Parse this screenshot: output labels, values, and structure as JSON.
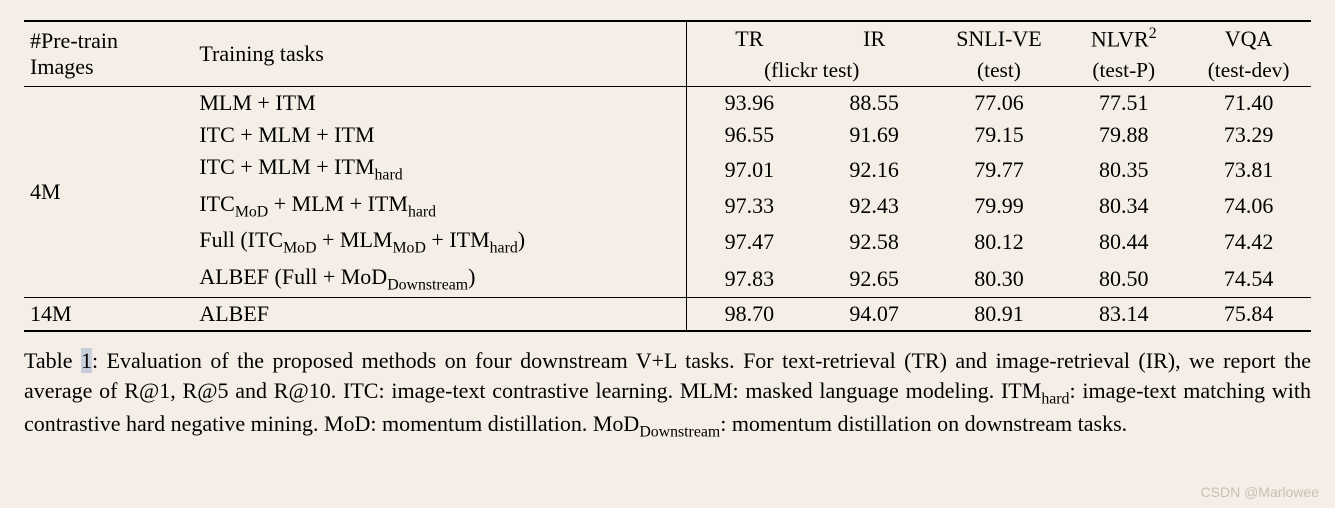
{
  "table": {
    "background_color": "#f5eee6",
    "rule_color": "#000000",
    "font_family": "Times New Roman",
    "font_size_pt": 22,
    "header": {
      "col0_line1": "#Pre-train",
      "col0_line2": "Images",
      "col1": "Training tasks",
      "tr": "TR",
      "ir": "IR",
      "flickr": "(flickr test)",
      "snli": "SNLI-VE",
      "snli_sub": "(test)",
      "nlvr": "NLVR",
      "nlvr_sup": "2",
      "nlvr_sub": "(test-P)",
      "vqa": "VQA",
      "vqa_sub": "(test-dev)"
    },
    "groups": [
      {
        "pretrain": "4M",
        "rows": [
          {
            "task_pre": "MLM + ITM",
            "task_sub": "",
            "task_post": "",
            "tr": "93.96",
            "ir": "88.55",
            "snli": "77.06",
            "nlvr": "77.51",
            "vqa": "71.40"
          },
          {
            "task_pre": "ITC + MLM + ITM",
            "task_sub": "",
            "task_post": "",
            "tr": "96.55",
            "ir": "91.69",
            "snli": "79.15",
            "nlvr": "79.88",
            "vqa": "73.29"
          },
          {
            "task_pre": "ITC + MLM + ITM",
            "task_sub": "hard",
            "task_post": "",
            "tr": "97.01",
            "ir": "92.16",
            "snli": "79.77",
            "nlvr": "80.35",
            "vqa": "73.81"
          },
          {
            "task_raw": "ITC<span class=\"sub\">MoD</span> + MLM + ITM<span class=\"sub\">hard</span>",
            "tr": "97.33",
            "ir": "92.43",
            "snli": "79.99",
            "nlvr": "80.34",
            "vqa": "74.06"
          },
          {
            "task_raw": "Full (ITC<span class=\"sub\">MoD</span> + MLM<span class=\"sub\">MoD</span> + ITM<span class=\"sub\">hard</span>)",
            "tr": "97.47",
            "ir": "92.58",
            "snli": "80.12",
            "nlvr": "80.44",
            "vqa": "74.42"
          },
          {
            "task_raw": "ALBEF (Full + MoD<span class=\"sub\">Downstream</span>)",
            "tr": "97.83",
            "ir": "92.65",
            "snli": "80.30",
            "nlvr": "80.50",
            "vqa": "74.54"
          }
        ]
      },
      {
        "pretrain": "14M",
        "rows": [
          {
            "task_pre": "ALBEF",
            "task_sub": "",
            "task_post": "",
            "tr": "98.70",
            "ir": "94.07",
            "snli": "80.91",
            "nlvr": "83.14",
            "vqa": "75.84"
          }
        ]
      }
    ]
  },
  "caption": {
    "label": "Table ",
    "num": "1",
    "body1": ": Evaluation of the proposed methods on four downstream V+L tasks. For text-retrieval (TR) and image-retrieval (IR), we report the average of R@1, R@5 and R@10. ITC: image-text contrastive learning. MLM: masked language modeling. ITM",
    "sub1": "hard",
    "body2": ": image-text matching with contrastive hard negative mining. MoD: momentum distillation. MoD",
    "sub2": "Downstream",
    "body3": ": momentum distillation on downstream tasks."
  },
  "watermark": "CSDN @Marlowee"
}
